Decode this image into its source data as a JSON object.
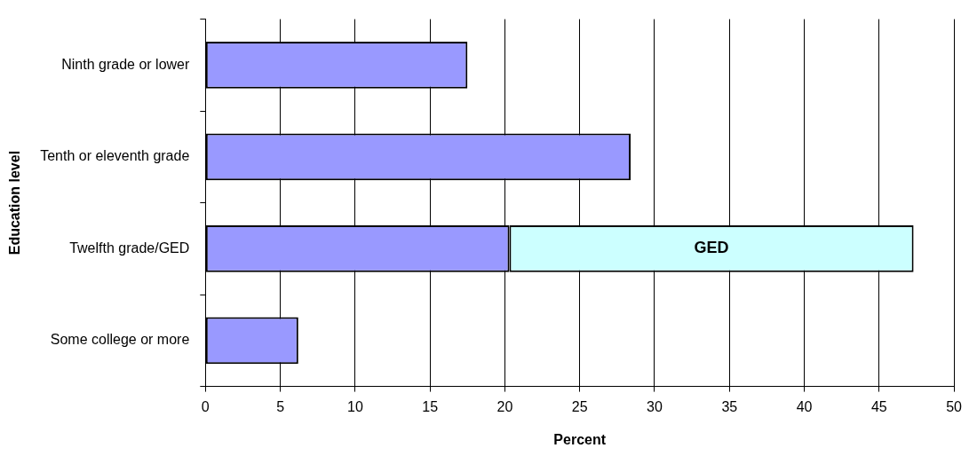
{
  "chart_data": {
    "type": "bar",
    "orientation": "horizontal",
    "stacked": true,
    "xlabel": "Percent",
    "ylabel": "Education level",
    "categories": [
      "Ninth grade or lower",
      "Tenth or eleventh grade",
      "Twelfth grade/GED",
      "Some college or more"
    ],
    "series": [
      {
        "color": "#9999ff",
        "values": [
          17.5,
          28.4,
          20.3,
          6.2
        ]
      },
      {
        "name": "GED",
        "color": "#ccffff",
        "values": [
          null,
          null,
          27.0,
          null
        ]
      }
    ],
    "xlim": [
      0,
      50
    ],
    "xticks": [
      0,
      5,
      10,
      15,
      20,
      25,
      30,
      35,
      40,
      45,
      50
    ],
    "grid": "x",
    "legend": false
  }
}
